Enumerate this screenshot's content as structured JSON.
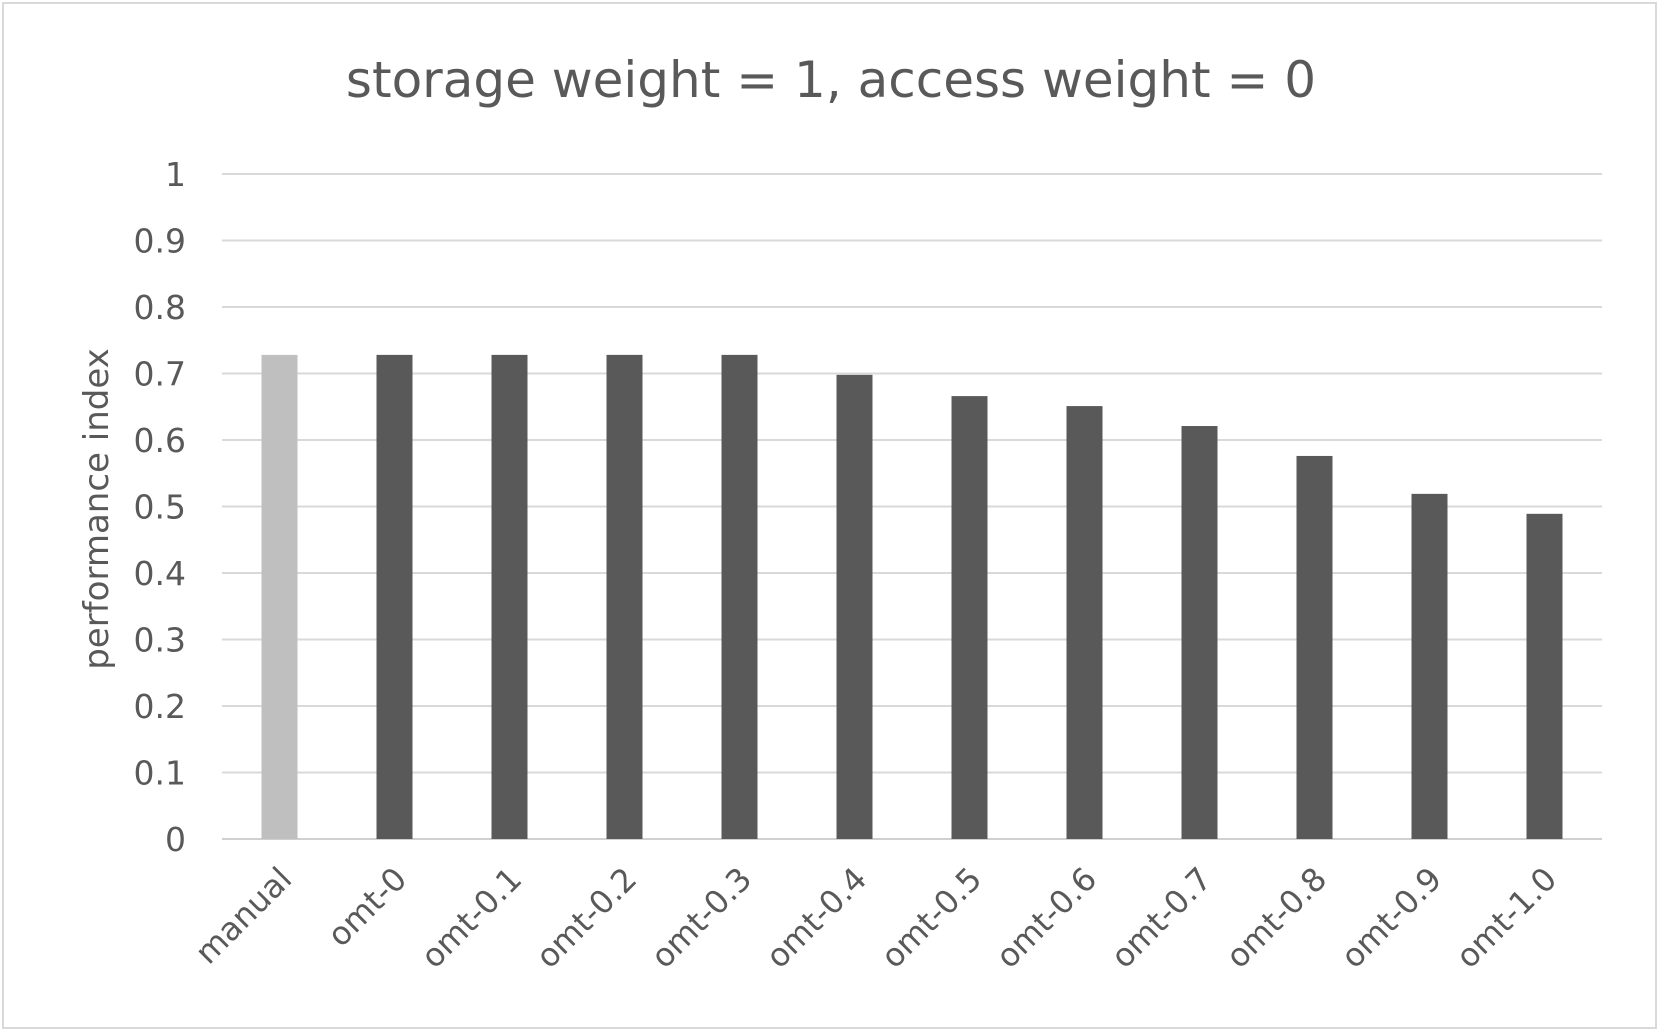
{
  "chart_data": {
    "type": "bar",
    "title": "storage weight = 1, access weight = 0",
    "xlabel": "",
    "ylabel": "performance index",
    "ylim": [
      0,
      1
    ],
    "yticks": [
      "0",
      "0.1",
      "0.2",
      "0.3",
      "0.4",
      "0.5",
      "0.6",
      "0.7",
      "0.8",
      "0.9",
      "1"
    ],
    "grid": true,
    "categories": [
      "manual",
      "omt-0",
      "omt-0.1",
      "omt-0.2",
      "omt-0.3",
      "omt-0.4",
      "omt-0.5",
      "omt-0.6",
      "omt-0.7",
      "omt-0.8",
      "omt-0.9",
      "omt-1.0"
    ],
    "values": [
      0.728,
      0.728,
      0.728,
      0.728,
      0.728,
      0.698,
      0.666,
      0.651,
      0.621,
      0.576,
      0.519,
      0.489
    ],
    "colors": {
      "highlight": "#bfbfbf",
      "default": "#595959"
    },
    "bar_color_keys": [
      "highlight",
      "default",
      "default",
      "default",
      "default",
      "default",
      "default",
      "default",
      "default",
      "default",
      "default",
      "default"
    ]
  }
}
